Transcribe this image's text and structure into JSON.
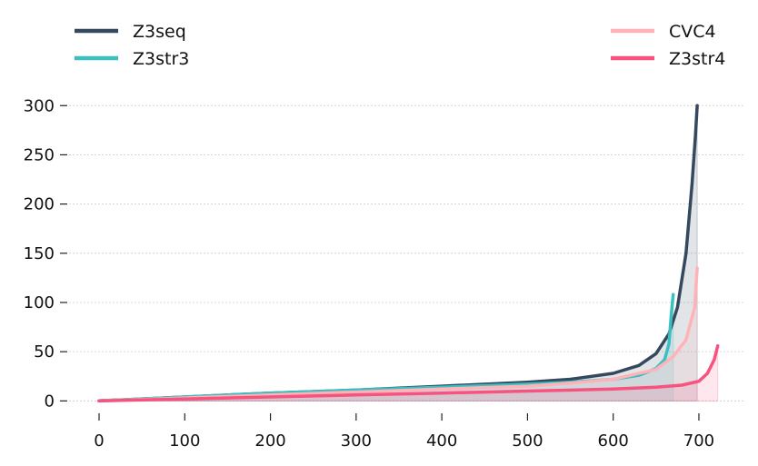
{
  "chart_data": {
    "type": "line",
    "title": "",
    "xlabel": "",
    "ylabel": "",
    "xlim": [
      -35,
      752
    ],
    "ylim": [
      -8,
      315
    ],
    "xticks": [
      0,
      100,
      200,
      300,
      400,
      500,
      600,
      700
    ],
    "yticks": [
      0,
      50,
      100,
      150,
      200,
      250,
      300
    ],
    "grid": {
      "y": true,
      "x": false
    },
    "area_fill": true,
    "legend": [
      {
        "placement": "top-left",
        "items": [
          "Z3seq",
          "Z3str3"
        ]
      },
      {
        "placement": "top-right",
        "items": [
          "CVC4",
          "Z3str4"
        ]
      }
    ],
    "series": [
      {
        "name": "Z3seq",
        "color": "#34495e",
        "x": [
          0,
          100,
          200,
          300,
          400,
          500,
          550,
          600,
          630,
          650,
          665,
          675,
          685,
          692,
          696,
          698
        ],
        "y": [
          0,
          4,
          8,
          11,
          15,
          19,
          22,
          28,
          36,
          48,
          68,
          95,
          150,
          220,
          270,
          300
        ]
      },
      {
        "name": "Z3str3",
        "color": "#3bbfc1",
        "x": [
          0,
          100,
          200,
          300,
          400,
          500,
          550,
          600,
          630,
          650,
          660,
          665,
          668,
          670
        ],
        "y": [
          0,
          4,
          8,
          11,
          14,
          17,
          19,
          22,
          26,
          33,
          42,
          58,
          90,
          108
        ]
      },
      {
        "name": "CVC4",
        "color": "#ffb3b9",
        "x": [
          0,
          100,
          200,
          300,
          400,
          500,
          550,
          600,
          650,
          670,
          685,
          695,
          698
        ],
        "y": [
          0,
          3,
          6,
          9,
          12,
          15,
          18,
          22,
          32,
          45,
          62,
          95,
          135
        ]
      },
      {
        "name": "Z3str4",
        "color": "#f8527f",
        "x": [
          0,
          100,
          200,
          300,
          400,
          500,
          600,
          650,
          680,
          700,
          710,
          718,
          722
        ],
        "y": [
          0,
          2,
          4,
          6,
          8,
          10,
          12,
          14,
          16,
          20,
          28,
          42,
          56
        ]
      }
    ]
  }
}
